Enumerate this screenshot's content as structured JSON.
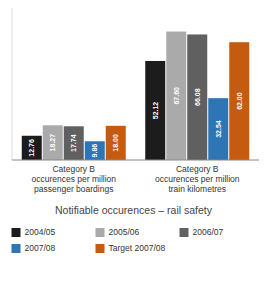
{
  "chart_data": {
    "type": "bar",
    "title": "Notifiable occurences – rail safety",
    "categories": [
      "Category B\noccurences per million\npassenger boardings",
      "Category B\noccurences per million\ntrain kilometres"
    ],
    "series": [
      {
        "name": "2004/05",
        "color": "#1c1c1c",
        "values": [
          12.76,
          52.12
        ],
        "value_labels": [
          "12.76",
          "52.12"
        ]
      },
      {
        "name": "2005/06",
        "color": "#aaaaaa",
        "values": [
          18.27,
          67.6
        ],
        "value_labels": [
          "18.27",
          "67.60"
        ]
      },
      {
        "name": "2006/07",
        "color": "#606060",
        "values": [
          17.74,
          66.08
        ],
        "value_labels": [
          "17.74",
          "66.08"
        ]
      },
      {
        "name": "2007/08",
        "color": "#2e75b6",
        "values": [
          9.86,
          32.54
        ],
        "value_labels": [
          "9.86",
          "32.54"
        ]
      },
      {
        "name": "Target 2007/08",
        "color": "#c55a11",
        "values": [
          18.0,
          62.0
        ],
        "value_labels": [
          "18.00",
          "62.00"
        ]
      }
    ],
    "ylim": [
      0,
      80
    ],
    "data_labels": true,
    "tick_labels": "x",
    "grid": false,
    "legend": "bottom"
  }
}
